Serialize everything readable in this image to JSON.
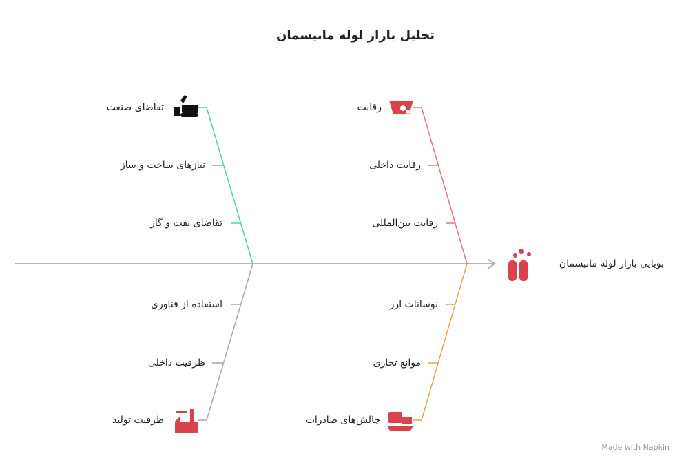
{
  "title": "تحلیل بازار لوله مانیسمان",
  "head": {
    "label": "پویایی بازار لوله مانیسمان"
  },
  "branches": [
    {
      "category": "تقاضای صنعت",
      "causes": [
        "نیازهای ساخت و ساز",
        "تقاضای نفت و گاز"
      ]
    },
    {
      "category": "رقابت",
      "causes": [
        "رقابت داخلی",
        "رقابت بین‌المللی"
      ]
    },
    {
      "category": "ظرفیت تولید",
      "causes": [
        "استفاده از فناوری",
        "ظرفیت داخلی"
      ]
    },
    {
      "category": "چالش‌های صادرات",
      "causes": [
        "نوسانات ارز",
        "موانع تجاری"
      ]
    }
  ],
  "footer": "Made with Napkin"
}
